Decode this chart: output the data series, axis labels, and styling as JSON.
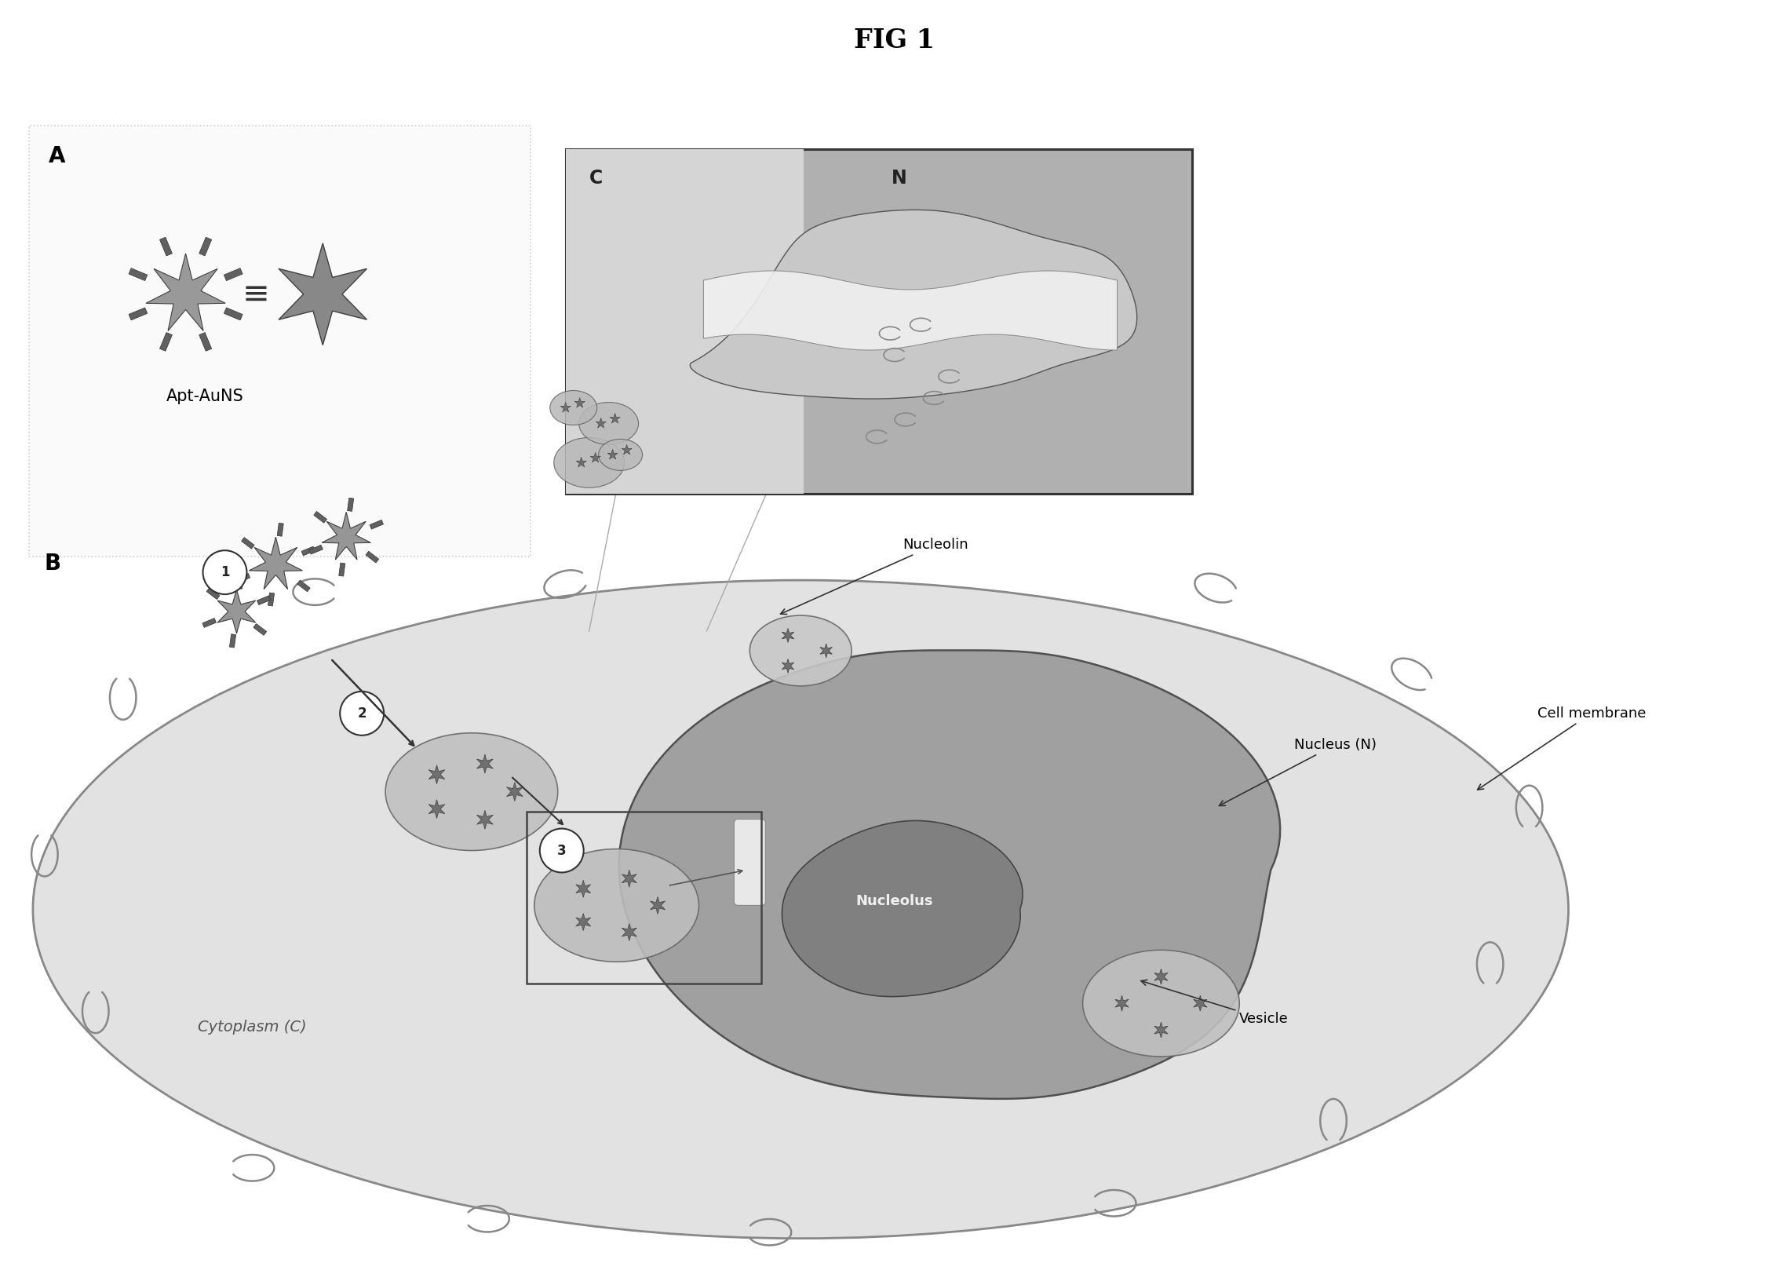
{
  "title": "FIG 1",
  "background_color": "#ffffff",
  "fig_width": 22.77,
  "fig_height": 16.09,
  "label_A": "A",
  "label_B": "B",
  "apt_auns_label": "Apt-AuNS",
  "nucleolin_label": "Nucleolin",
  "cell_membrane_label": "Cell membrane",
  "nucleus_label": "Nucleus (N)",
  "nucleolus_label": "Nucleolus",
  "vesicle_label": "Vesicle",
  "cytoplasm_label": "Cytoplasm (C)",
  "inset_C_label": "C",
  "inset_N_label": "N",
  "cell_fill": "#e0e0e0",
  "nucleus_fill": "#a8a8a8",
  "nucleolus_fill": "#787878",
  "text_color": "#000000"
}
